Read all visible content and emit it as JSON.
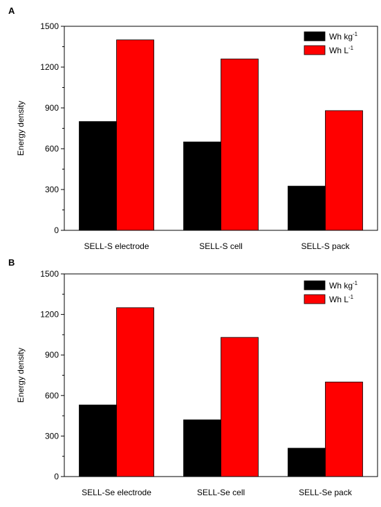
{
  "colors": {
    "black_series": "#000000",
    "red_series": "#ff0000",
    "axis": "#000000"
  },
  "chart_data": [
    {
      "panel_label": "A",
      "type": "bar",
      "ylabel": "Energy density",
      "xlabel": "",
      "ylim": [
        0,
        1500
      ],
      "yticks": [
        "0",
        "300",
        "600",
        "900",
        "1200",
        "1500"
      ],
      "categories": [
        "SELL-S electrode",
        "SELL-S cell",
        "SELL-S pack"
      ],
      "series": [
        {
          "name": "Wh kg",
          "superscript": "-1",
          "color": "#000000",
          "values": [
            800,
            650,
            325
          ]
        },
        {
          "name": "Wh L",
          "superscript": "-1",
          "color": "#ff0000",
          "values": [
            1400,
            1260,
            880
          ]
        }
      ],
      "legend_position": "top-right",
      "grid": false
    },
    {
      "panel_label": "B",
      "type": "bar",
      "ylabel": "Energy density",
      "xlabel": "",
      "ylim": [
        0,
        1500
      ],
      "yticks": [
        "0",
        "300",
        "600",
        "900",
        "1200",
        "1500"
      ],
      "categories": [
        "SELL-Se electrode",
        "SELL-Se cell",
        "SELL-Se pack"
      ],
      "series": [
        {
          "name": "Wh kg",
          "superscript": "-1",
          "color": "#000000",
          "values": [
            530,
            420,
            210
          ]
        },
        {
          "name": "Wh L",
          "superscript": "-1",
          "color": "#ff0000",
          "values": [
            1250,
            1030,
            700
          ]
        }
      ],
      "legend_position": "top-right",
      "grid": false
    }
  ]
}
